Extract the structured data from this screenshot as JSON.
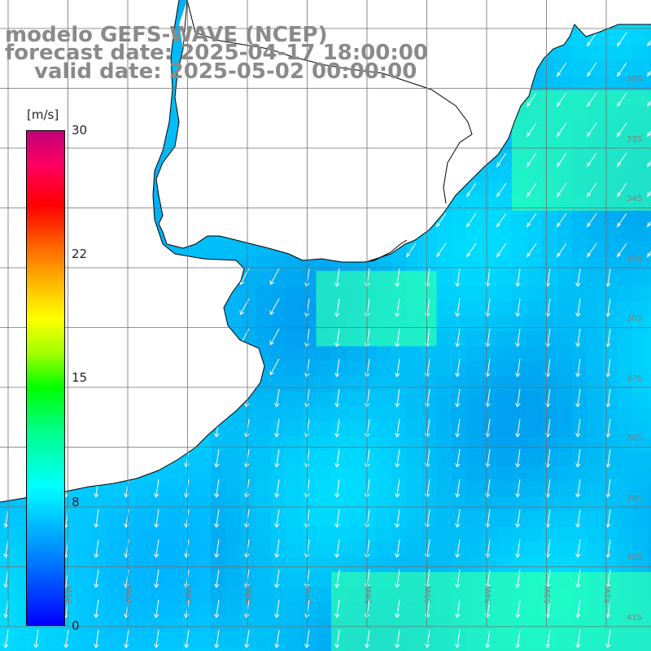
{
  "header": {
    "model": "modelo GEFS-WAVE (NCEP)",
    "forecast": "forecast date: 2025-04-17 18:00:00",
    "valid": "valid date: 2025-05-02 00:00:00"
  },
  "colorbar": {
    "unit": "[m/s]",
    "ticks": [
      "30",
      "22",
      "15",
      "8",
      "0"
    ],
    "min": 0,
    "max": 30,
    "colors": [
      "#0000ff",
      "#00b8ff",
      "#00ffff",
      "#00ff00",
      "#ffff00",
      "#ff0000",
      "#c0007a"
    ]
  },
  "map": {
    "lat_labels": [
      "32S",
      "33S",
      "34S",
      "35S",
      "36S",
      "37S",
      "38S",
      "39S",
      "40S",
      "41S"
    ],
    "lon_labels": [
      "61W",
      "60W",
      "59W",
      "58W",
      "57W",
      "56W",
      "55W",
      "54W",
      "53W",
      "52W"
    ],
    "wind_direction": "north-to-south / southwest",
    "wind_speed_range_ms": [
      5,
      10
    ],
    "land_color": "#ffffff",
    "coast_color": "#000000",
    "grid_color": "#6f6f6f"
  }
}
